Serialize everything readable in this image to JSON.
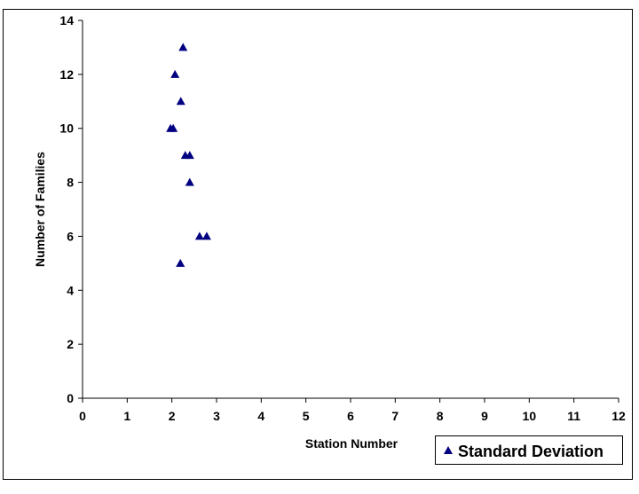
{
  "chart_data": {
    "type": "scatter",
    "x_label": "Station Number",
    "y_label": "Number of Families",
    "series": [
      {
        "name": "Standard Deviation",
        "color": "#000080",
        "x": [
          2.25,
          2.07,
          2.2,
          1.97,
          2.03,
          2.3,
          2.4,
          2.4,
          2.62,
          2.78,
          2.19
        ],
        "values": [
          13,
          12,
          11,
          10,
          10,
          9,
          9,
          8,
          6,
          6,
          5
        ]
      }
    ],
    "xlim": [
      0,
      12
    ],
    "xticks": [
      0,
      1,
      2,
      3,
      4,
      5,
      6,
      7,
      8,
      9,
      10,
      11,
      12
    ],
    "ylim": [
      0,
      14
    ],
    "yticks": [
      0,
      2,
      4,
      6,
      8,
      10,
      12,
      14
    ],
    "grid": false,
    "legend_position": "bottom-right"
  }
}
